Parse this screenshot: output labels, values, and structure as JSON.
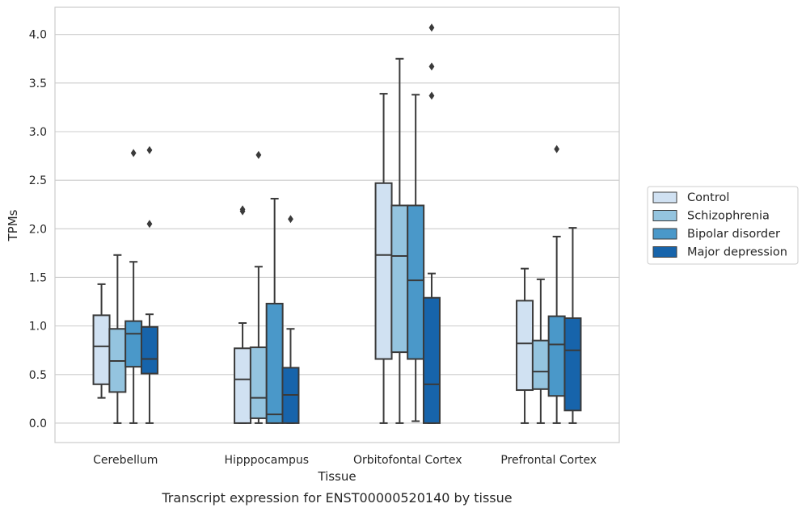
{
  "caption": "Transcript expression for ENST00000520140 by tissue",
  "chart_data": {
    "type": "box",
    "xlabel": "Tissue",
    "ylabel": "TPMs",
    "ylim": [
      -0.2,
      4.28
    ],
    "yticks": [
      "0.0",
      "0.5",
      "1.0",
      "1.5",
      "2.0",
      "2.5",
      "3.0",
      "3.5",
      "4.0"
    ],
    "grid": "horizontal",
    "legend_position": "right",
    "categories": [
      "Cerebellum",
      "Hipppocampus",
      "Orbitofontal Cortex",
      "Prefrontal Cortex"
    ],
    "series": [
      {
        "name": "Control",
        "color": "#d0e1f2",
        "boxes": [
          {
            "whislo": 0.26,
            "q1": 0.4,
            "med": 0.79,
            "q3": 1.11,
            "whishi": 1.43,
            "fliers": []
          },
          {
            "whislo": 0.0,
            "q1": 0.0,
            "med": 0.45,
            "q3": 0.77,
            "whishi": 1.03,
            "fliers": [
              2.18,
              2.2
            ]
          },
          {
            "whislo": 0.0,
            "q1": 0.66,
            "med": 1.73,
            "q3": 2.47,
            "whishi": 3.39,
            "fliers": []
          },
          {
            "whislo": 0.0,
            "q1": 0.34,
            "med": 0.82,
            "q3": 1.26,
            "whishi": 1.59,
            "fliers": []
          }
        ]
      },
      {
        "name": "Schizophrenia",
        "color": "#94c4df",
        "boxes": [
          {
            "whislo": 0.0,
            "q1": 0.32,
            "med": 0.64,
            "q3": 0.97,
            "whishi": 1.73,
            "fliers": []
          },
          {
            "whislo": 0.0,
            "q1": 0.05,
            "med": 0.26,
            "q3": 0.78,
            "whishi": 1.61,
            "fliers": [
              2.76
            ]
          },
          {
            "whislo": 0.0,
            "q1": 0.73,
            "med": 1.72,
            "q3": 2.24,
            "whishi": 3.75,
            "fliers": []
          },
          {
            "whislo": 0.0,
            "q1": 0.35,
            "med": 0.53,
            "q3": 0.85,
            "whishi": 1.48,
            "fliers": []
          }
        ]
      },
      {
        "name": "Bipolar disorder",
        "color": "#4a98c9",
        "boxes": [
          {
            "whislo": 0.0,
            "q1": 0.58,
            "med": 0.92,
            "q3": 1.05,
            "whishi": 1.66,
            "fliers": [
              2.78
            ]
          },
          {
            "whislo": 0.0,
            "q1": 0.0,
            "med": 0.09,
            "q3": 1.23,
            "whishi": 2.31,
            "fliers": []
          },
          {
            "whislo": 0.02,
            "q1": 0.66,
            "med": 1.47,
            "q3": 2.24,
            "whishi": 3.38,
            "fliers": []
          },
          {
            "whislo": 0.0,
            "q1": 0.28,
            "med": 0.81,
            "q3": 1.1,
            "whishi": 1.92,
            "fliers": [
              2.82
            ]
          }
        ]
      },
      {
        "name": "Major depression",
        "color": "#1764ab",
        "boxes": [
          {
            "whislo": 0.0,
            "q1": 0.51,
            "med": 0.66,
            "q3": 0.99,
            "whishi": 1.12,
            "fliers": [
              2.05,
              2.81
            ]
          },
          {
            "whislo": 0.0,
            "q1": 0.0,
            "med": 0.29,
            "q3": 0.57,
            "whishi": 0.97,
            "fliers": [
              2.1
            ]
          },
          {
            "whislo": 0.0,
            "q1": 0.0,
            "med": 0.4,
            "q3": 1.29,
            "whishi": 1.54,
            "fliers": [
              3.37,
              3.67,
              4.07
            ]
          },
          {
            "whislo": 0.0,
            "q1": 0.13,
            "med": 0.75,
            "q3": 1.08,
            "whishi": 2.01,
            "fliers": []
          }
        ]
      }
    ]
  }
}
